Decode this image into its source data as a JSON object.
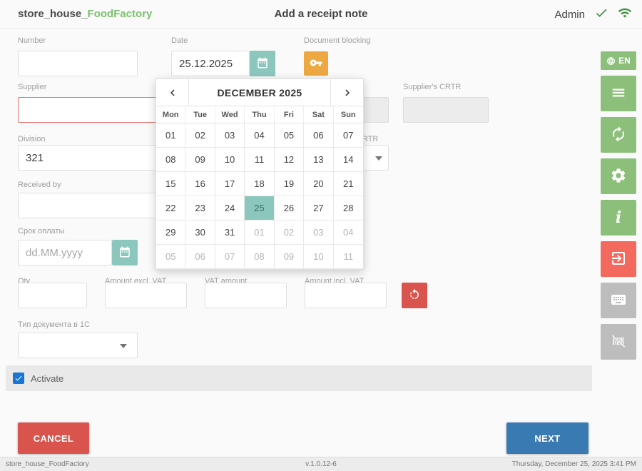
{
  "header": {
    "app_prefix": "store_house_",
    "app_suffix": "FoodFactory",
    "title": "Add a receipt note",
    "user": "Admin"
  },
  "form": {
    "number_label": "Number",
    "date_label": "Date",
    "date_value": "25.12.2025",
    "doc_blocking_label": "Document blocking",
    "supplier_label": "Supplier",
    "supplier_crtr_label": "Supplier's CRTR",
    "division_label": "Division",
    "division_value": "321",
    "crtr_label": "CRTR",
    "received_by_label": "Received by",
    "payment_due_label": "Срок оплаты",
    "payment_due_placeholder": "dd.MM.yyyy",
    "qty_label": "Qty",
    "amount_excl_vat_label": "Amount excl. VAT",
    "vat_amount_label": "VAT amount",
    "amount_incl_vat_label": "Amount incl. VAT",
    "doc_type_label": "Тип документа в 1С",
    "activate_label": "Activate",
    "activate_checked": true
  },
  "calendar": {
    "month_title": "DECEMBER 2025",
    "day_names": [
      "Mon",
      "Tue",
      "Wed",
      "Thu",
      "Fri",
      "Sat",
      "Sun"
    ],
    "selected_day": "25",
    "cells": [
      {
        "d": "01"
      },
      {
        "d": "02"
      },
      {
        "d": "03"
      },
      {
        "d": "04"
      },
      {
        "d": "05"
      },
      {
        "d": "06"
      },
      {
        "d": "07"
      },
      {
        "d": "08"
      },
      {
        "d": "09"
      },
      {
        "d": "10"
      },
      {
        "d": "11"
      },
      {
        "d": "12"
      },
      {
        "d": "13"
      },
      {
        "d": "14"
      },
      {
        "d": "15"
      },
      {
        "d": "16"
      },
      {
        "d": "17"
      },
      {
        "d": "18"
      },
      {
        "d": "19"
      },
      {
        "d": "20"
      },
      {
        "d": "21"
      },
      {
        "d": "22"
      },
      {
        "d": "23"
      },
      {
        "d": "24"
      },
      {
        "d": "25",
        "selected": true
      },
      {
        "d": "26"
      },
      {
        "d": "27"
      },
      {
        "d": "28"
      },
      {
        "d": "29"
      },
      {
        "d": "30"
      },
      {
        "d": "31"
      },
      {
        "d": "01",
        "muted": true
      },
      {
        "d": "02",
        "muted": true
      },
      {
        "d": "03",
        "muted": true
      },
      {
        "d": "04",
        "muted": true
      },
      {
        "d": "05",
        "muted": true
      },
      {
        "d": "06",
        "muted": true
      },
      {
        "d": "07",
        "muted": true
      },
      {
        "d": "08",
        "muted": true
      },
      {
        "d": "09",
        "muted": true
      },
      {
        "d": "10",
        "muted": true
      },
      {
        "d": "11",
        "muted": true
      }
    ]
  },
  "sidebar": {
    "lang_label": "EN",
    "icons": [
      "globe",
      "menu",
      "sync",
      "gear",
      "info",
      "logout",
      "keyboard",
      "barcode-disabled"
    ]
  },
  "buttons": {
    "cancel": "CANCEL",
    "next": "NEXT"
  },
  "footer": {
    "app_name": "store_house_FoodFactory",
    "version": "v.1.0.12-6",
    "datetime": "Thursday, December 25, 2025 3:41 PM"
  },
  "colors": {
    "brand_green": "#7cc06e",
    "sidebar_green": "#8cbf7a",
    "teal": "#8cc7be",
    "orange": "#eda842",
    "red": "#d9544d",
    "logout_red": "#f4695e",
    "next_blue": "#3a7ab3",
    "checkbox_blue": "#1976d2",
    "error_border": "#e57373",
    "status_green": "#3f9142"
  }
}
